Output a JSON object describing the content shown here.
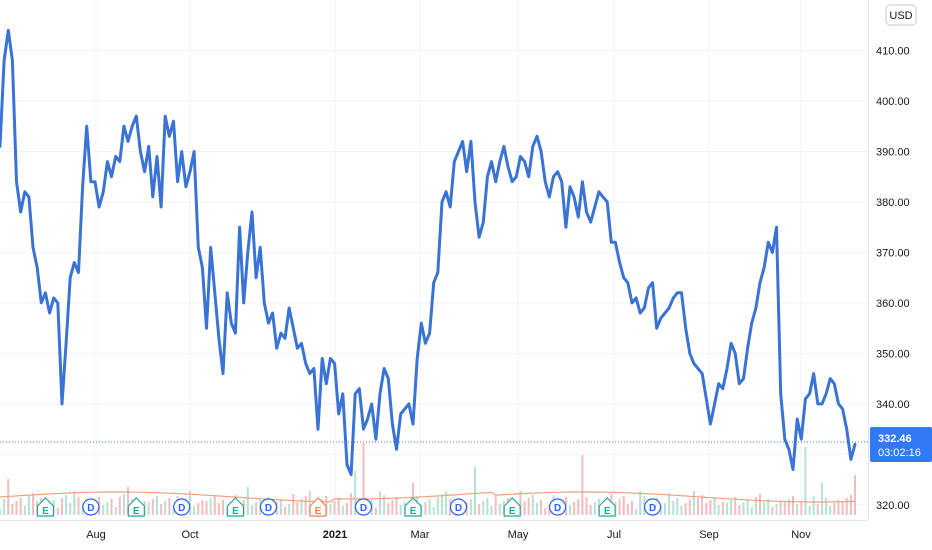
{
  "currency": "USD",
  "price_label": {
    "value": "332.46",
    "countdown": "03:02:16",
    "color": "#3179f5"
  },
  "colors": {
    "line": "#3a73d6",
    "volume_ma": "#f0a07e",
    "vol_up": "#b7e2d3",
    "vol_down": "#f5bcbc",
    "earnings": "#26a69a",
    "earnings_last": "#f57f54",
    "dividend": "#2962ff"
  },
  "chart_data": {
    "type": "line",
    "series": [
      {
        "values": [
          391,
          408,
          414,
          408,
          384,
          378,
          382,
          381,
          371,
          367,
          360,
          362,
          358,
          361,
          360,
          340,
          352,
          365,
          368,
          366,
          383,
          395,
          384,
          384,
          379,
          382,
          388,
          385,
          389,
          388,
          395,
          392,
          395,
          397,
          390,
          386,
          391,
          381,
          389,
          379,
          397,
          393,
          396,
          384,
          390,
          383,
          386,
          390,
          371,
          367,
          355,
          371,
          362,
          353,
          346,
          362,
          356,
          354,
          375,
          360,
          370,
          378,
          365,
          371,
          360,
          356,
          358,
          351,
          354,
          353,
          359,
          355,
          351,
          352,
          348,
          346,
          347,
          335,
          349,
          344,
          349,
          348,
          338,
          342,
          328,
          326,
          342,
          343,
          335,
          337,
          340,
          333,
          342,
          347,
          345,
          336,
          331,
          338,
          339,
          340,
          336,
          349,
          356,
          352,
          354,
          364,
          366,
          380,
          382,
          379,
          388,
          390,
          392,
          386,
          392,
          380,
          373,
          376,
          385,
          388,
          384,
          388,
          391,
          387,
          384,
          385,
          389,
          388,
          385,
          391,
          393,
          390,
          384,
          381,
          385,
          386,
          384,
          375,
          383,
          381,
          377,
          384,
          378,
          376,
          379,
          382,
          381,
          380,
          372,
          372,
          368,
          365,
          364,
          360,
          361,
          358,
          359,
          363,
          364,
          355,
          357,
          358,
          359,
          361,
          362,
          362,
          355,
          350,
          348,
          347,
          346,
          341,
          336,
          340,
          344,
          343,
          347,
          352,
          350,
          344,
          345,
          351,
          356,
          359,
          364,
          367,
          372,
          370,
          375,
          342,
          333,
          331,
          327,
          337,
          333,
          341,
          342,
          346,
          340,
          340,
          342,
          345,
          344,
          340,
          339,
          335,
          329,
          332
        ]
      }
    ],
    "x_tick_labels": [
      "Aug",
      "Oct",
      "2021",
      "Mar",
      "May",
      "Jul",
      "Sep",
      "Nov"
    ],
    "y_tick_labels": [
      "320.00",
      "330.00",
      "340.00",
      "350.00",
      "360.00",
      "370.00",
      "380.00",
      "390.00",
      "400.00",
      "410.00"
    ],
    "ylim": [
      317,
      420
    ],
    "volume": [
      {
        "i": 2,
        "v": 0.45,
        "up": false
      },
      {
        "i": 7,
        "v": 0.25,
        "up": true
      },
      {
        "i": 18,
        "v": 0.3,
        "up": true
      },
      {
        "i": 31,
        "v": 0.35,
        "up": false
      },
      {
        "i": 46,
        "v": 0.3,
        "up": true
      },
      {
        "i": 60,
        "v": 0.35,
        "up": true
      },
      {
        "i": 75,
        "v": 0.3,
        "up": true
      },
      {
        "i": 86,
        "v": 0.55,
        "up": true
      },
      {
        "i": 88,
        "v": 0.9,
        "up": false
      },
      {
        "i": 92,
        "v": 0.3,
        "up": true
      },
      {
        "i": 100,
        "v": 0.4,
        "up": false
      },
      {
        "i": 108,
        "v": 0.3,
        "up": true
      },
      {
        "i": 115,
        "v": 0.6,
        "up": true
      },
      {
        "i": 126,
        "v": 0.3,
        "up": false
      },
      {
        "i": 141,
        "v": 0.75,
        "up": false
      },
      {
        "i": 155,
        "v": 0.3,
        "up": true
      },
      {
        "i": 168,
        "v": 0.3,
        "up": true
      },
      {
        "i": 184,
        "v": 0.25,
        "up": false
      },
      {
        "i": 195,
        "v": 0.85,
        "up": true
      },
      {
        "i": 199,
        "v": 0.4,
        "up": true
      },
      {
        "i": 207,
        "v": 0.5,
        "up": false
      }
    ],
    "events": [
      {
        "type": "E",
        "i": 11
      },
      {
        "type": "D",
        "i": 22
      },
      {
        "type": "E",
        "i": 33
      },
      {
        "type": "D",
        "i": 44
      },
      {
        "type": "E",
        "i": 57
      },
      {
        "type": "D",
        "i": 65
      },
      {
        "type": "E",
        "i": 77
      },
      {
        "type": "D",
        "i": 88
      },
      {
        "type": "E",
        "i": 100
      },
      {
        "type": "D",
        "i": 111
      },
      {
        "type": "E",
        "i": 124
      },
      {
        "type": "D",
        "i": 135
      },
      {
        "type": "E",
        "i": 147
      },
      {
        "type": "D",
        "i": 158
      }
    ]
  }
}
